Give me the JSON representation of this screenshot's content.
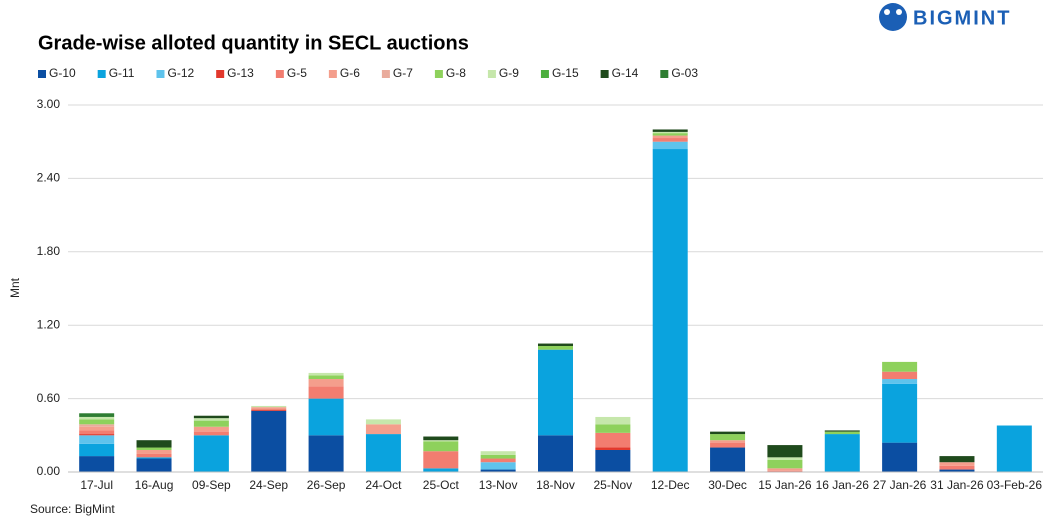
{
  "chart_data": {
    "type": "stacked_bar",
    "title": "Grade-wise alloted quantity in SECL auctions",
    "brand": "BIGMINT",
    "y_label": "Mnt",
    "source": "Source: BigMint",
    "categories": [
      "17-Jul",
      "16-Aug",
      "09-Sep",
      "24-Sep",
      "26-Sep",
      "24-Oct",
      "25-Oct",
      "13-Nov",
      "18-Nov",
      "25-Nov",
      "12-Dec",
      "30-Dec",
      "15 Jan-26",
      "16 Jan-26",
      "27 Jan-26",
      "31 Jan-26",
      "03-Feb-26"
    ],
    "ylim": [
      0,
      3
    ],
    "yticks": [
      {
        "value": 0,
        "label": "0.00"
      },
      {
        "value": 0.6,
        "label": "0.60"
      },
      {
        "value": 1.2,
        "label": "1.20"
      },
      {
        "value": 1.8,
        "label": "1.80"
      },
      {
        "value": 2.4,
        "label": "2.40"
      },
      {
        "value": 3,
        "label": "3.00"
      }
    ],
    "grid": true,
    "series": [
      {
        "name": "G-10",
        "color": "#0b4ea2",
        "values": [
          0.13,
          0.11,
          0,
          0.5,
          0.3,
          0,
          0,
          0.02,
          0.3,
          0.18,
          0,
          0.2,
          0,
          0,
          0.24,
          0.02,
          0
        ]
      },
      {
        "name": "G-11",
        "color": "#0aa3de",
        "values": [
          0.1,
          0.01,
          0.3,
          0,
          0.3,
          0.31,
          0.03,
          0,
          0.7,
          0,
          2.64,
          0,
          0,
          0.31,
          0.48,
          0,
          0.38
        ]
      },
      {
        "name": "G-12",
        "color": "#5ec3ec",
        "values": [
          0.07,
          0,
          0,
          0,
          0,
          0,
          0,
          0.06,
          0,
          0,
          0.06,
          0,
          0,
          0,
          0.04,
          0,
          0
        ]
      },
      {
        "name": "G-13",
        "color": "#e2382c",
        "values": [
          0.01,
          0,
          0,
          0.01,
          0,
          0,
          0,
          0,
          0,
          0.02,
          0,
          0,
          0,
          0,
          0,
          0,
          0
        ]
      },
      {
        "name": "G-5",
        "color": "#f27d70",
        "values": [
          0.03,
          0.03,
          0.03,
          0,
          0.1,
          0,
          0.14,
          0.03,
          0,
          0.12,
          0.03,
          0.04,
          0.01,
          0,
          0.06,
          0.03,
          0
        ]
      },
      {
        "name": "G-6",
        "color": "#f49e8c",
        "values": [
          0.03,
          0.03,
          0.04,
          0.02,
          0.06,
          0.08,
          0,
          0,
          0,
          0,
          0.02,
          0.02,
          0.02,
          0,
          0,
          0.03,
          0
        ]
      },
      {
        "name": "G-7",
        "color": "#e9ab9c",
        "values": [
          0.02,
          0,
          0,
          0,
          0,
          0,
          0,
          0,
          0,
          0,
          0,
          0,
          0,
          0,
          0,
          0,
          0
        ]
      },
      {
        "name": "G-8",
        "color": "#8ed15c",
        "values": [
          0.04,
          0.02,
          0.05,
          0,
          0.03,
          0,
          0.08,
          0.03,
          0.03,
          0.07,
          0.02,
          0.05,
          0.07,
          0.02,
          0.08,
          0,
          0
        ]
      },
      {
        "name": "G-9",
        "color": "#c6e7ab",
        "values": [
          0.02,
          0,
          0.02,
          0.01,
          0.02,
          0.04,
          0.01,
          0.03,
          0,
          0.06,
          0.01,
          0,
          0.02,
          0,
          0,
          0,
          0
        ]
      },
      {
        "name": "G-15",
        "color": "#4caf3e",
        "values": [
          0,
          0,
          0,
          0,
          0,
          0,
          0,
          0,
          0,
          0,
          0,
          0,
          0,
          0,
          0,
          0,
          0
        ]
      },
      {
        "name": "G-14",
        "color": "#1f4a1c",
        "values": [
          0,
          0.06,
          0.02,
          0,
          0,
          0,
          0.03,
          0,
          0.02,
          0,
          0.02,
          0.02,
          0.1,
          0.01,
          0,
          0.05,
          0
        ]
      },
      {
        "name": "G-03",
        "color": "#2e7d32",
        "values": [
          0.03,
          0,
          0,
          0,
          0,
          0,
          0,
          0,
          0,
          0,
          0,
          0,
          0,
          0,
          0,
          0,
          0
        ]
      }
    ]
  }
}
